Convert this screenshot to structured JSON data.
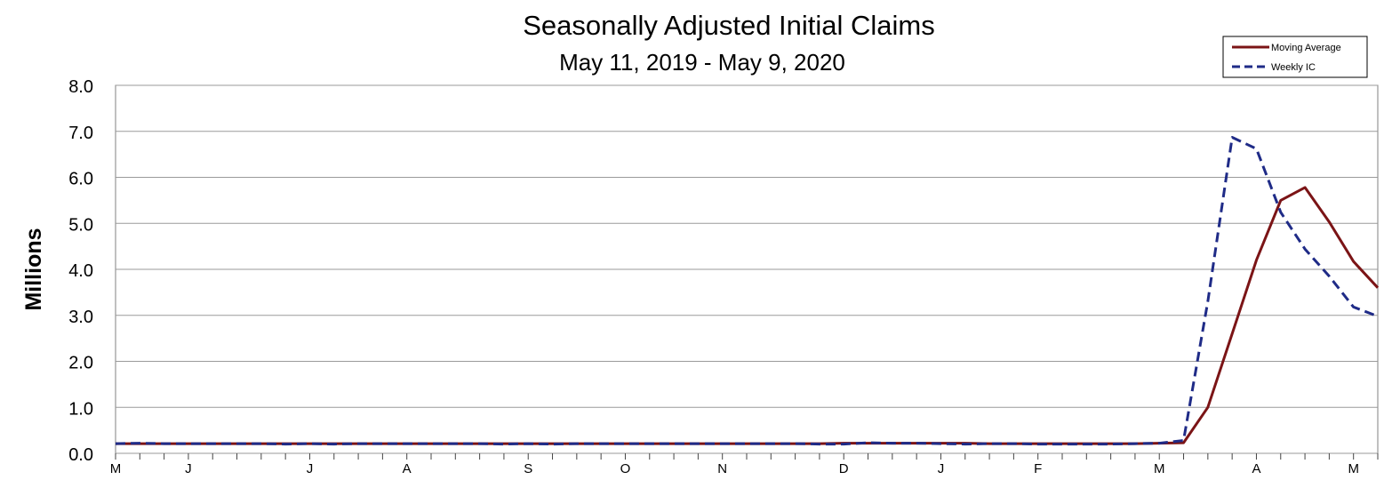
{
  "chart_data": {
    "type": "line",
    "title": "Seasonally Adjusted Initial Claims",
    "subtitle": "May 11, 2019 - May 9, 2020",
    "ylabel": "Millions",
    "xlabel": "",
    "ylim": [
      0,
      8
    ],
    "y_ticks": [
      "0.0",
      "1.0",
      "2.0",
      "3.0",
      "4.0",
      "5.0",
      "6.0",
      "7.0",
      "8.0"
    ],
    "x_month_labels": [
      {
        "label": "M",
        "week": 0
      },
      {
        "label": "J",
        "week": 3
      },
      {
        "label": "J",
        "week": 8
      },
      {
        "label": "A",
        "week": 12
      },
      {
        "label": "S",
        "week": 17
      },
      {
        "label": "O",
        "week": 21
      },
      {
        "label": "N",
        "week": 25
      },
      {
        "label": "D",
        "week": 30
      },
      {
        "label": "J",
        "week": 34
      },
      {
        "label": "F",
        "week": 38
      },
      {
        "label": "M",
        "week": 43
      },
      {
        "label": "A",
        "week": 47
      },
      {
        "label": "M",
        "week": 51
      }
    ],
    "grid": true,
    "legend_position": "top-right",
    "series": [
      {
        "name": "Moving Average",
        "color": "#7b1416",
        "style": "solid",
        "values": [
          0.21,
          0.21,
          0.21,
          0.21,
          0.21,
          0.21,
          0.21,
          0.21,
          0.21,
          0.21,
          0.21,
          0.21,
          0.21,
          0.21,
          0.21,
          0.21,
          0.21,
          0.21,
          0.21,
          0.21,
          0.21,
          0.21,
          0.21,
          0.21,
          0.21,
          0.21,
          0.21,
          0.21,
          0.21,
          0.21,
          0.22,
          0.22,
          0.22,
          0.22,
          0.22,
          0.22,
          0.21,
          0.21,
          0.21,
          0.21,
          0.21,
          0.21,
          0.21,
          0.22,
          0.23,
          1.0,
          2.6,
          4.2,
          5.5,
          5.78,
          5.03,
          4.17,
          3.6
        ]
      },
      {
        "name": "Weekly IC",
        "color": "#1f2b87",
        "style": "dashed",
        "values": [
          0.21,
          0.22,
          0.21,
          0.21,
          0.21,
          0.21,
          0.21,
          0.2,
          0.21,
          0.2,
          0.21,
          0.21,
          0.21,
          0.21,
          0.21,
          0.21,
          0.2,
          0.21,
          0.2,
          0.21,
          0.21,
          0.21,
          0.21,
          0.21,
          0.21,
          0.21,
          0.21,
          0.21,
          0.21,
          0.2,
          0.2,
          0.23,
          0.22,
          0.22,
          0.21,
          0.2,
          0.21,
          0.21,
          0.2,
          0.2,
          0.2,
          0.2,
          0.21,
          0.22,
          0.28,
          3.3,
          6.87,
          6.62,
          5.24,
          4.44,
          3.85,
          3.18,
          2.98
        ]
      }
    ]
  }
}
